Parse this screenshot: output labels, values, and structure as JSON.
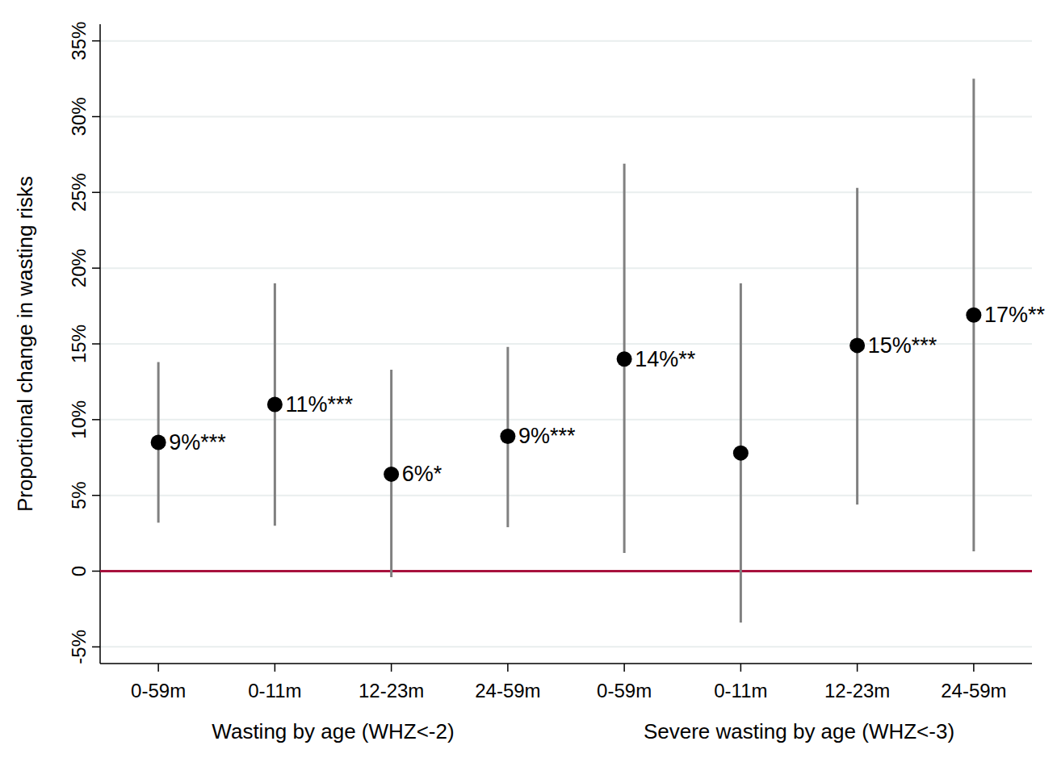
{
  "chart_data": {
    "type": "dot",
    "y_label": "Proportional change in wasting risks",
    "categories": [
      "0-59m",
      "0-11m",
      "12-23m",
      "24-59m",
      "0-59m",
      "0-11m",
      "12-23m",
      "24-59m"
    ],
    "x_groups": [
      {
        "label": "Wasting by age (WHZ<-2)",
        "size": 4
      },
      {
        "label": "Severe wasting by age (WHZ<-3)",
        "size": 4
      }
    ],
    "values": [
      8.5,
      11.0,
      6.4,
      8.9,
      14.0,
      7.8,
      14.9,
      16.9
    ],
    "value_labels": [
      "9%***",
      "11%***",
      "6%*",
      "9%***",
      "14%**",
      null,
      "15%***",
      "17%**"
    ],
    "ci_low": [
      3.2,
      3.0,
      -0.4,
      2.9,
      1.2,
      -3.4,
      4.4,
      1.3
    ],
    "ci_high": [
      13.8,
      19.0,
      13.3,
      14.8,
      26.9,
      19.0,
      25.3,
      32.5
    ],
    "reference_line": 0,
    "ylim": [
      -6.1,
      36.1
    ],
    "yticks": [
      {
        "value": -5,
        "label": "-5%"
      },
      0,
      {
        "value": 5,
        "label": "5%"
      },
      {
        "value": 10,
        "label": "10%"
      },
      {
        "value": 15,
        "label": "15%"
      },
      {
        "value": 20,
        "label": "20%"
      },
      {
        "value": 25,
        "label": "25%"
      },
      {
        "value": 30,
        "label": "30%"
      },
      {
        "value": 35,
        "label": "35%"
      }
    ],
    "grid": true,
    "data_labels": true,
    "color": "#000000",
    "marker": "circle"
  }
}
